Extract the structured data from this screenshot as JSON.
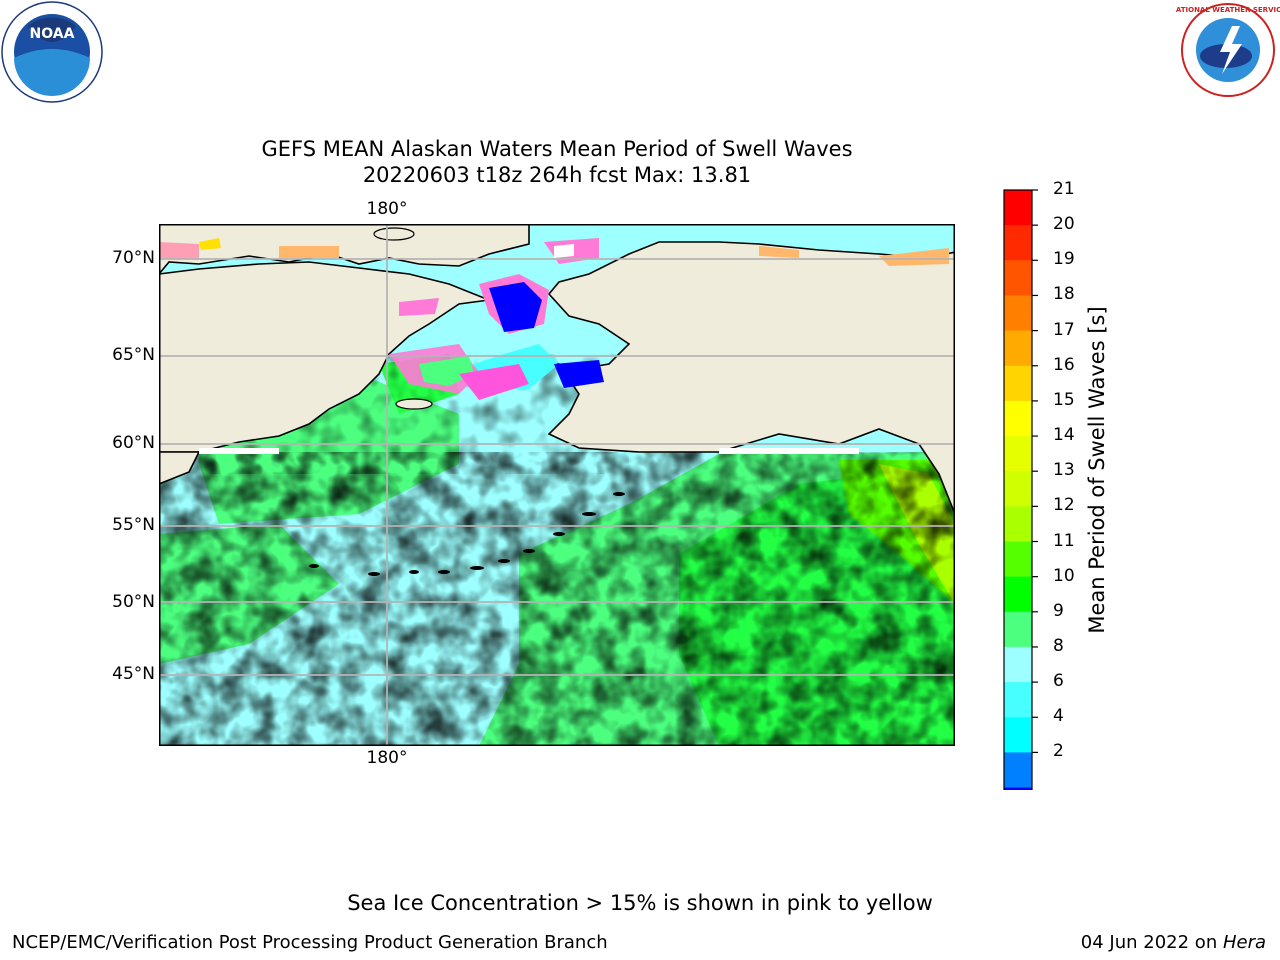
{
  "logos": {
    "left": "NOAA",
    "right": "NATIONAL WEATHER SERVICE"
  },
  "title": {
    "line1": "GEFS MEAN Alaskan Waters Mean Period of Swell Waves",
    "line2": "20220603 t18z 264h fcst   Max: 13.81"
  },
  "map": {
    "lat_labels": [
      "70°N",
      "65°N",
      "60°N",
      "55°N",
      "50°N",
      "45°N"
    ],
    "lon_label_top": "180°",
    "lon_label_bottom": "180°",
    "land_color": "#efecdc",
    "grid_color": "#b4b4b4"
  },
  "colorbar": {
    "title": "Mean Period of Swell Waves [s]",
    "ticks": [
      "21",
      "20",
      "19",
      "18",
      "17",
      "16",
      "15",
      "14",
      "13",
      "12",
      "11",
      "10",
      "9",
      "8",
      "6",
      "4",
      "2"
    ],
    "colors": [
      "#ff0000",
      "#ff2a00",
      "#ff5500",
      "#ff8000",
      "#ffaa00",
      "#ffd400",
      "#ffff00",
      "#e6ff00",
      "#cfff00",
      "#aaff00",
      "#55ff00",
      "#00ff00",
      "#4cff7f",
      "#9dffff",
      "#48ffff",
      "#00ffff",
      "#0080ff",
      "#0000ff"
    ],
    "extend_color": "#0000ff"
  },
  "note": "Sea Ice Concentration > 15% is shown in pink to yellow",
  "footer": {
    "left": "NCEP/EMC/Verification Post Processing Product Generation Branch",
    "right_prefix": "04 Jun 2022 on ",
    "right_italic": "Hera"
  }
}
